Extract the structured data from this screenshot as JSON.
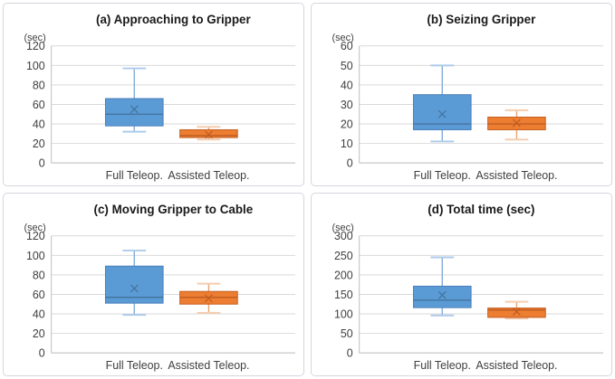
{
  "figure": {
    "unit_label": "(sec)",
    "categories": [
      "Full Teleop.",
      "Assisted Teleop."
    ],
    "colors": {
      "blue_fill": "#5B9BD5",
      "blue_border": "#4A7EBB",
      "blue_median": "#41719C",
      "blue_whisker": "#82ABDC",
      "blue_cap": "#AECBEA",
      "orange_fill": "#ED7D31",
      "orange_border": "#C55F23",
      "orange_median": "#BC5B21",
      "orange_whisker": "#E8A273",
      "orange_cap": "#F4CDB0",
      "gridline": "#D9D9D9",
      "axis": "#BFBFBF",
      "text": "#3F3F3F"
    }
  },
  "chart_data": [
    {
      "type": "boxplot",
      "title": "(a) Approaching to Gripper",
      "ylabel": "(sec)",
      "ylim": [
        0,
        120
      ],
      "ytick_step": 20,
      "grid": true,
      "categories": [
        "Full Teleop.",
        "Assisted Teleop."
      ],
      "series": [
        {
          "name": "Full Teleop.",
          "color": "blue",
          "min": 32,
          "q1": 38,
          "median": 50,
          "mean": 55,
          "q3": 66,
          "max": 97
        },
        {
          "name": "Assisted Teleop.",
          "color": "orange",
          "min": 24,
          "q1": 26,
          "median": 28,
          "mean": 29,
          "q3": 34,
          "max": 37
        }
      ]
    },
    {
      "type": "boxplot",
      "title": "(b) Seizing Gripper",
      "ylabel": "(sec)",
      "ylim": [
        0,
        60
      ],
      "ytick_step": 10,
      "grid": true,
      "categories": [
        "Full Teleop.",
        "Assisted Teleop."
      ],
      "series": [
        {
          "name": "Full Teleop.",
          "color": "blue",
          "min": 11,
          "q1": 17,
          "median": 20,
          "mean": 25,
          "q3": 35,
          "max": 50
        },
        {
          "name": "Assisted Teleop.",
          "color": "orange",
          "min": 12,
          "q1": 17,
          "median": 20,
          "mean": 20.5,
          "q3": 23.5,
          "max": 27
        }
      ]
    },
    {
      "type": "boxplot",
      "title": "(c) Moving Gripper to Cable",
      "ylabel": "(sec)",
      "ylim": [
        0,
        120
      ],
      "ytick_step": 20,
      "grid": true,
      "categories": [
        "Full Teleop.",
        "Assisted Teleop."
      ],
      "series": [
        {
          "name": "Full Teleop.",
          "color": "blue",
          "min": 39,
          "q1": 51,
          "median": 57,
          "mean": 66,
          "q3": 89,
          "max": 105
        },
        {
          "name": "Assisted Teleop.",
          "color": "orange",
          "min": 41,
          "q1": 50,
          "median": 57,
          "mean": 56,
          "q3": 63,
          "max": 71
        }
      ]
    },
    {
      "type": "boxplot",
      "title": "(d) Total time (sec)",
      "ylabel": "(sec)",
      "ylim": [
        0,
        300
      ],
      "ytick_step": 50,
      "grid": true,
      "categories": [
        "Full Teleop.",
        "Assisted Teleop."
      ],
      "series": [
        {
          "name": "Full Teleop.",
          "color": "blue",
          "min": 96,
          "q1": 116,
          "median": 135,
          "mean": 148,
          "q3": 171,
          "max": 245
        },
        {
          "name": "Assisted Teleop.",
          "color": "orange",
          "min": 88,
          "q1": 91,
          "median": 110,
          "mean": 106,
          "q3": 115,
          "max": 131
        }
      ]
    }
  ]
}
